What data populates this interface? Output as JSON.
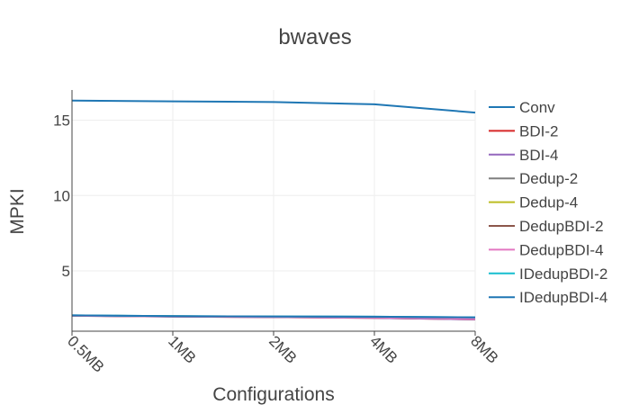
{
  "chart_data": {
    "type": "line",
    "title": "bwaves",
    "xlabel": "Configurations",
    "ylabel": "MPKI",
    "categories": [
      "0.5MB",
      "1MB",
      "2MB",
      "4MB",
      "8MB"
    ],
    "ylim": [
      1.0,
      17.0
    ],
    "yticks": [
      5,
      10,
      15
    ],
    "grid": true,
    "legend_position": "right",
    "series": [
      {
        "name": "Conv",
        "color": "#1f77b4",
        "values": [
          16.3,
          16.25,
          16.2,
          16.05,
          15.5
        ]
      },
      {
        "name": "BDI-2",
        "color": "#d62728",
        "values": [
          2.02,
          1.97,
          1.93,
          1.88,
          1.78
        ]
      },
      {
        "name": "BDI-4",
        "color": "#9467bd",
        "values": [
          2.02,
          1.97,
          1.93,
          1.88,
          1.78
        ]
      },
      {
        "name": "Dedup-2",
        "color": "#7f7f7f",
        "values": [
          2.04,
          1.99,
          1.96,
          1.93,
          1.85
        ]
      },
      {
        "name": "Dedup-4",
        "color": "#bcbd22",
        "values": [
          2.04,
          1.99,
          1.96,
          1.93,
          1.85
        ]
      },
      {
        "name": "DedupBDI-2",
        "color": "#8c564b",
        "values": [
          2.03,
          1.98,
          1.95,
          1.91,
          1.82
        ]
      },
      {
        "name": "DedupBDI-4",
        "color": "#e377c2",
        "values": [
          2.03,
          1.98,
          1.95,
          1.91,
          1.82
        ]
      },
      {
        "name": "IDedupBDI-2",
        "color": "#17becf",
        "values": [
          2.05,
          2.0,
          1.98,
          1.96,
          1.92
        ]
      },
      {
        "name": "IDedupBDI-4",
        "color": "#1f77b4",
        "values": [
          2.05,
          2.0,
          1.98,
          1.96,
          1.92
        ]
      }
    ]
  }
}
